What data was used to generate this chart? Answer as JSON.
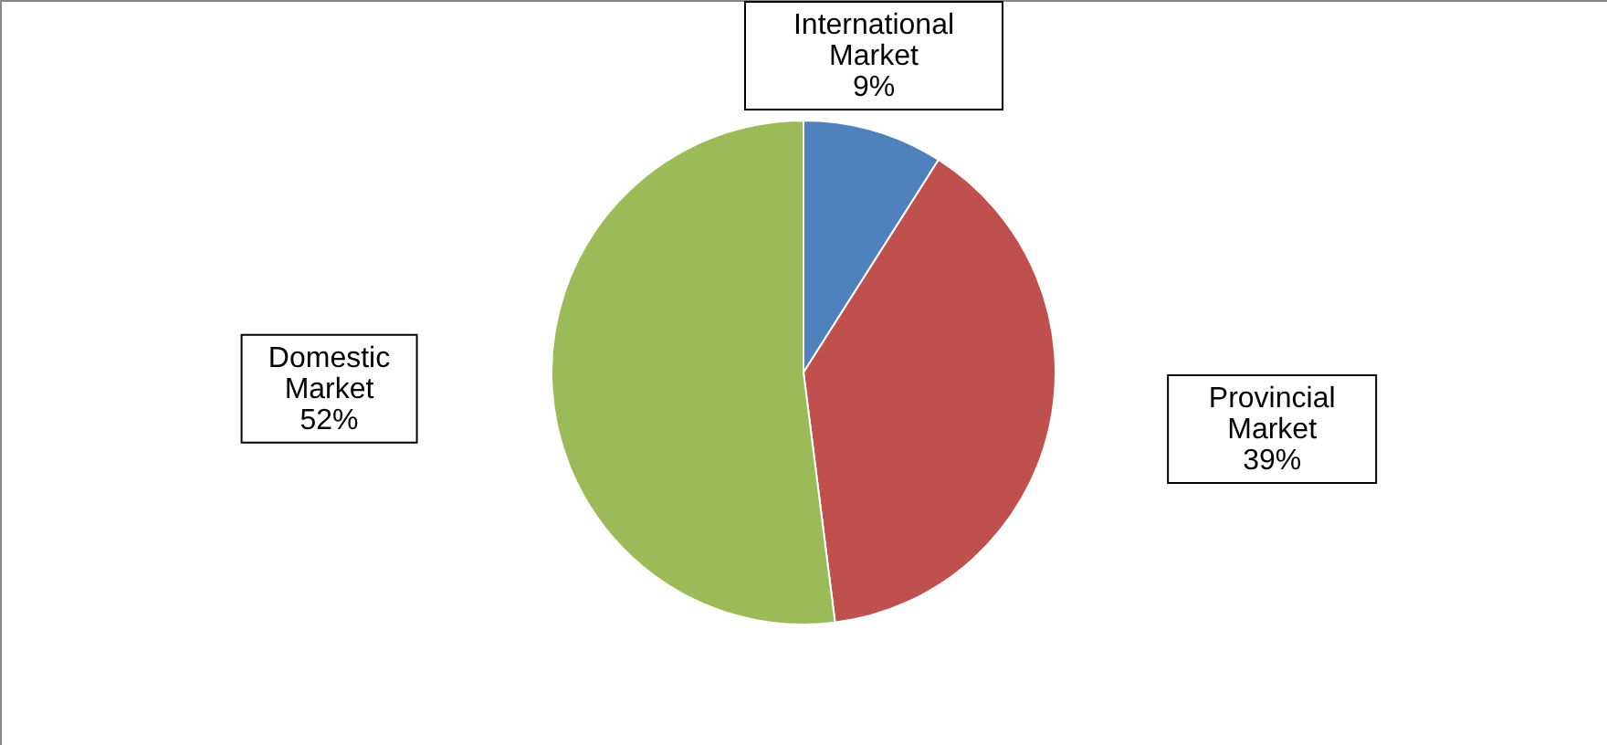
{
  "chart_data": {
    "type": "pie",
    "categories": [
      "International Market",
      "Provincial Market",
      "Domestic Market"
    ],
    "values": [
      9,
      39,
      52
    ],
    "value_labels": [
      "9%",
      "39%",
      "52%"
    ],
    "colors": [
      "#4f81bd",
      "#c0504d",
      "#9bbb59"
    ]
  }
}
